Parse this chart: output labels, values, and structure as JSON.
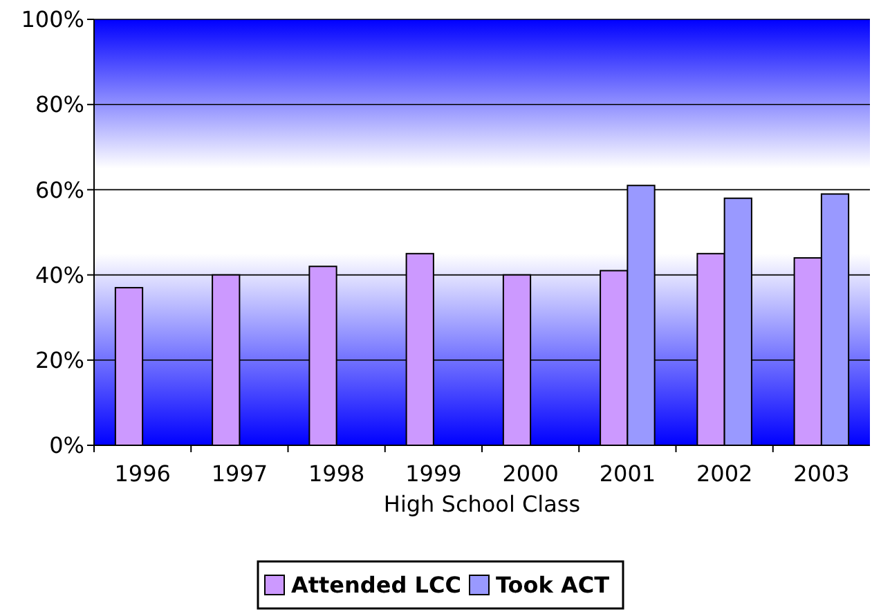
{
  "chart_data": {
    "type": "bar",
    "xlabel": "High School Class",
    "categories": [
      "1996",
      "1997",
      "1998",
      "1999",
      "2000",
      "2001",
      "2002",
      "2003"
    ],
    "series": [
      {
        "name": "Attended LCC",
        "color": "#cc99ff",
        "values": [
          37,
          40,
          42,
          45,
          40,
          41,
          45,
          44
        ]
      },
      {
        "name": "Took ACT",
        "color": "#9999ff",
        "values": [
          null,
          null,
          null,
          null,
          null,
          61,
          58,
          59
        ]
      }
    ],
    "ylim": [
      0,
      100
    ],
    "yticks": [
      {
        "value": 0,
        "label": "0%"
      },
      {
        "value": 20,
        "label": "20%"
      },
      {
        "value": 40,
        "label": "40%"
      },
      {
        "value": 60,
        "label": "60%"
      },
      {
        "value": 80,
        "label": "80%"
      },
      {
        "value": 100,
        "label": "100%"
      }
    ],
    "grid": "y",
    "legend": "bottom"
  }
}
